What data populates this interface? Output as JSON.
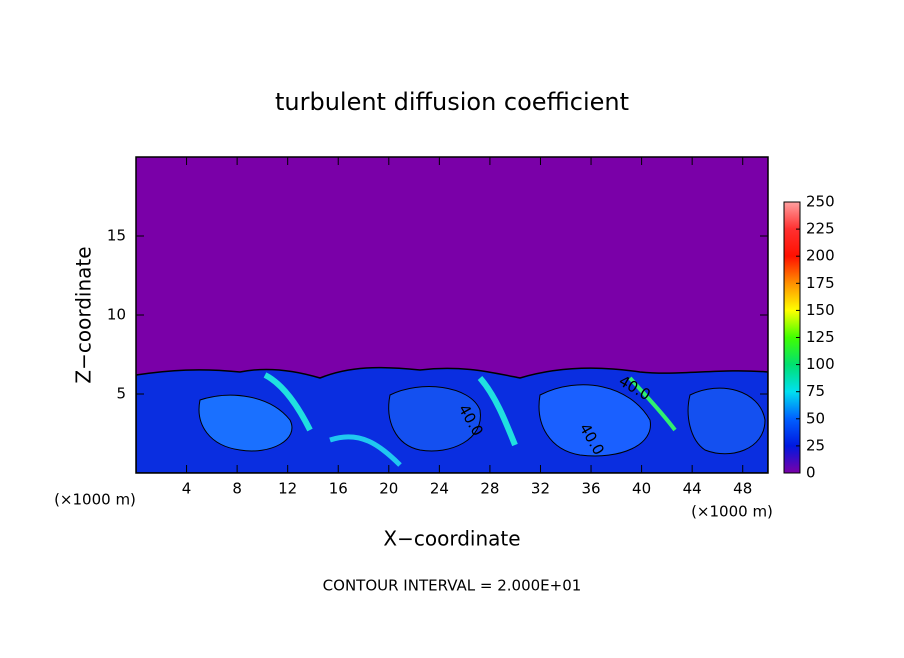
{
  "chart_data": {
    "type": "contourf",
    "title": "turbulent diffusion coefficient",
    "x_label": "X−coordinate",
    "y_label": "Z−coordinate",
    "x_unit_labels": [
      "(×1000 m)",
      "(×1000 m)"
    ],
    "footer": "CONTOUR INTERVAL = 2.000E+01",
    "contour_labels": [
      "40.0",
      "40.0",
      "40.0"
    ],
    "xlim": [
      0,
      50
    ],
    "xticks": [
      4,
      8,
      12,
      16,
      20,
      24,
      28,
      32,
      36,
      40,
      44,
      48
    ],
    "ylim": [
      0,
      20
    ],
    "yticks": [
      5,
      10,
      15
    ],
    "grid": false,
    "colorbar": {
      "lim": [
        0,
        250
      ],
      "ticks": [
        0,
        25,
        50,
        75,
        100,
        125,
        150,
        175,
        200,
        225,
        250
      ],
      "colors": [
        "#7a00a8",
        "#0018e0",
        "#0060ff",
        "#00e0f0",
        "#00e070",
        "#40ff00",
        "#ffff00",
        "#ff9000",
        "#ff1000",
        "#ff3030",
        "#ffa0a0"
      ]
    }
  }
}
